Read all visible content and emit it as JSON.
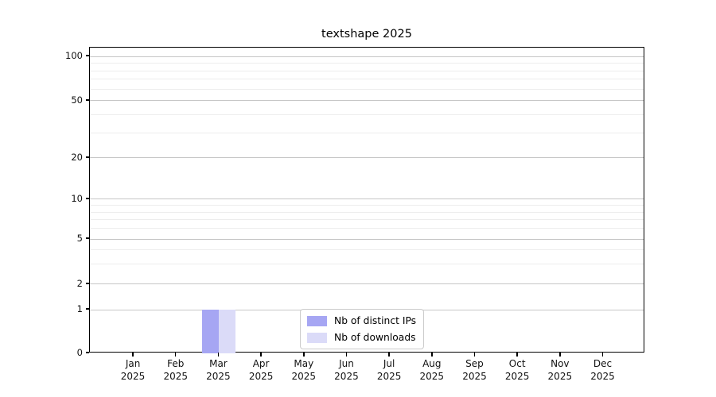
{
  "chart_data": {
    "type": "bar",
    "title": "textshape 2025",
    "x": {
      "categories": [
        "Jan",
        "Feb",
        "Mar",
        "Apr",
        "May",
        "Jun",
        "Jul",
        "Aug",
        "Sep",
        "Oct",
        "Nov",
        "Dec"
      ],
      "year_label": "2025"
    },
    "y_axis": {
      "scale": "symlog",
      "ticks": [
        0,
        1,
        2,
        5,
        10,
        20,
        50,
        100
      ],
      "minor_ticks": [
        3,
        4,
        6,
        7,
        8,
        9,
        30,
        40,
        60,
        70,
        80,
        90
      ],
      "ylim": [
        0,
        115
      ],
      "grid": "horizontal-only"
    },
    "series": [
      {
        "name": "Nb of distinct IPs",
        "color": "#a6a6f3",
        "values": [
          0,
          0,
          1,
          0,
          0,
          0,
          0,
          0,
          0,
          0,
          0,
          0
        ]
      },
      {
        "name": "Nb of downloads",
        "color": "#dbdbf8",
        "values": [
          0,
          0,
          1,
          0,
          0,
          0,
          0,
          0,
          0,
          0,
          0,
          0
        ]
      }
    ],
    "legend": {
      "position": "inside-bottom-center",
      "border_color": "#cccccc"
    }
  }
}
